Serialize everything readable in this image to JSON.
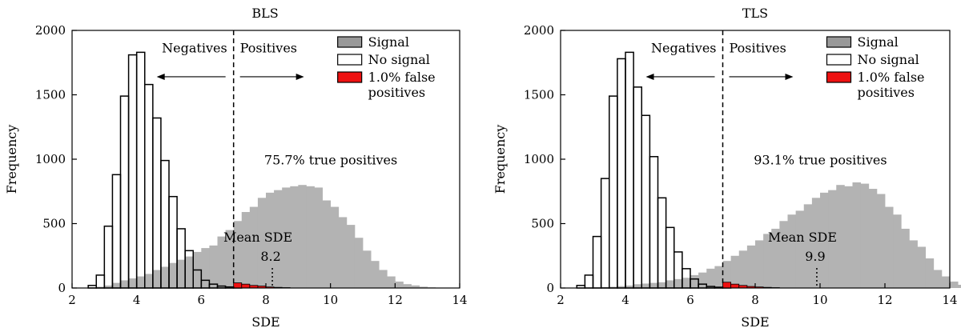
{
  "colors": {
    "signal_fill": "#b3b3b3",
    "signal_legend": "#999999",
    "nosignal_fill": "#ffffff",
    "edge": "#000000",
    "false_pos": "#ee1111"
  },
  "chart_data": [
    {
      "type": "histogram",
      "title": "BLS",
      "xlabel": "SDE",
      "ylabel": "Frequency",
      "xlim": [
        2,
        14
      ],
      "ylim": [
        0,
        2000
      ],
      "xticks": [
        "2",
        "4",
        "6",
        "8",
        "10",
        "12",
        "14"
      ],
      "yticks": [
        "0",
        "500",
        "1000",
        "1500",
        "2000"
      ],
      "bin_width": 0.25,
      "threshold": 7.0,
      "legend": {
        "signal": "Signal",
        "nosignal": "No signal",
        "false_pos": "1.0% false positives",
        "false_pos_lines": [
          "1.0% false",
          "positives"
        ]
      },
      "labels": {
        "negatives": "Negatives",
        "positives": "Positives",
        "true_positives": "75.7% true positives",
        "mean_label": "Mean SDE",
        "mean_value": "8.2"
      },
      "mean_sde": 8.2,
      "nosignal": {
        "start": 2.5,
        "values": [
          20,
          100,
          480,
          880,
          1490,
          1810,
          1830,
          1580,
          1320,
          990,
          710,
          460,
          290,
          140,
          60,
          30,
          15,
          8,
          3
        ]
      },
      "signal": {
        "start": 2.5,
        "values": [
          5,
          10,
          20,
          40,
          60,
          75,
          90,
          110,
          140,
          165,
          195,
          220,
          245,
          280,
          310,
          330,
          400,
          450,
          520,
          590,
          630,
          700,
          740,
          760,
          780,
          790,
          800,
          790,
          780,
          680,
          630,
          550,
          490,
          390,
          290,
          210,
          140,
          90,
          50,
          30,
          20,
          10,
          5
        ]
      },
      "false_pos": {
        "start": 7.0,
        "values": [
          40,
          30,
          20,
          15,
          8,
          5,
          3
        ]
      }
    },
    {
      "type": "histogram",
      "title": "TLS",
      "xlabel": "SDE",
      "ylabel": "Frequency",
      "xlim": [
        2,
        14
      ],
      "ylim": [
        0,
        2000
      ],
      "xticks": [
        "2",
        "4",
        "6",
        "8",
        "10",
        "12",
        "14"
      ],
      "yticks": [
        "0",
        "500",
        "1000",
        "1500",
        "2000"
      ],
      "bin_width": 0.25,
      "threshold": 7.0,
      "legend": {
        "signal": "Signal",
        "nosignal": "No signal",
        "false_pos": "1.0% false positives",
        "false_pos_lines": [
          "1.0% false",
          "positives"
        ]
      },
      "labels": {
        "negatives": "Negatives",
        "positives": "Positives",
        "true_positives": "93.1% true positives",
        "mean_label": "Mean SDE",
        "mean_value": "9.9"
      },
      "mean_sde": 9.9,
      "nosignal": {
        "start": 2.5,
        "values": [
          20,
          100,
          400,
          850,
          1490,
          1780,
          1830,
          1560,
          1340,
          1020,
          700,
          470,
          280,
          150,
          70,
          30,
          12,
          6,
          3
        ]
      },
      "signal": {
        "start": 3.0,
        "values": [
          5,
          8,
          10,
          15,
          20,
          30,
          35,
          40,
          45,
          60,
          70,
          80,
          100,
          120,
          150,
          170,
          210,
          250,
          290,
          330,
          370,
          420,
          460,
          520,
          570,
          600,
          650,
          700,
          740,
          760,
          800,
          790,
          820,
          810,
          770,
          730,
          630,
          570,
          460,
          370,
          320,
          230,
          140,
          90,
          50,
          25
        ]
      },
      "false_pos": {
        "start": 7.0,
        "values": [
          45,
          30,
          20,
          12,
          8,
          5,
          3
        ]
      }
    }
  ]
}
